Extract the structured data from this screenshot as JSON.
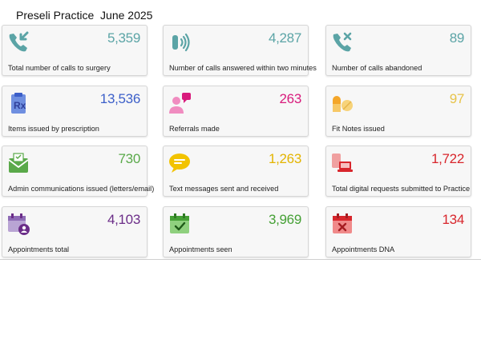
{
  "header": {
    "title": "Preseli Practice  June 2025"
  },
  "cards": [
    {
      "value": "5,359",
      "label": "Total number of calls to surgery",
      "color": "#5ba4a6",
      "icon": "incoming-call-icon"
    },
    {
      "value": "4,287",
      "label": "Number of calls answered within two minutes",
      "color": "#5ba4a6",
      "icon": "ringing-phone-icon"
    },
    {
      "value": "89",
      "label": "Number of calls abandoned",
      "color": "#5ba4a6",
      "icon": "missed-call-icon"
    },
    {
      "value": "13,536",
      "label": "Items issued by prescription",
      "color": "#3c5fc9",
      "icon": "prescription-icon"
    },
    {
      "value": "263",
      "label": "Referrals made",
      "color": "#d81b7c",
      "icon": "referral-icon"
    },
    {
      "value": "97",
      "label": "Fit Notes issued",
      "color": "#e7c34a",
      "icon": "pills-icon"
    },
    {
      "value": "730",
      "label": "Admin communications issued (letters/email)",
      "color": "#5aa94a",
      "icon": "mail-icon"
    },
    {
      "value": "1,263",
      "label": "Text messages sent and received",
      "color": "#e3b400",
      "icon": "chat-bubble-icon"
    },
    {
      "value": "1,722",
      "label": "Total digital requests submitted to Practice",
      "color": "#d8262c",
      "icon": "digital-devices-icon"
    },
    {
      "value": "4,103",
      "label": "Appointments total",
      "color": "#6b2d88",
      "icon": "calendar-person-icon"
    },
    {
      "value": "3,969",
      "label": "Appointments seen",
      "color": "#45a035",
      "icon": "calendar-check-icon"
    },
    {
      "value": "134",
      "label": "Appointments DNA",
      "color": "#d8262c",
      "icon": "calendar-cross-icon"
    }
  ]
}
